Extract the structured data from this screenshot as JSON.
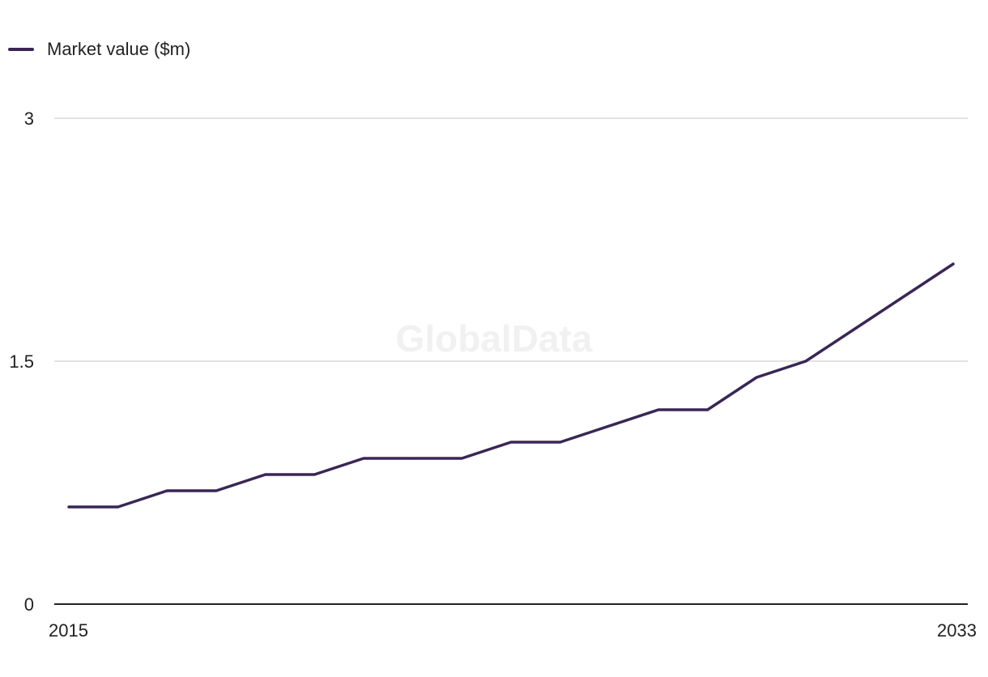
{
  "chart_data": {
    "type": "line",
    "x": [
      2015,
      2016,
      2017,
      2018,
      2019,
      2020,
      2021,
      2022,
      2023,
      2024,
      2025,
      2026,
      2027,
      2028,
      2029,
      2030,
      2031,
      2032,
      2033
    ],
    "series": [
      {
        "name": "Market value ($m)",
        "color": "#3a2656",
        "values": [
          0.6,
          0.6,
          0.7,
          0.7,
          0.8,
          0.8,
          0.9,
          0.9,
          0.9,
          1.0,
          1.0,
          1.1,
          1.2,
          1.2,
          1.4,
          1.5,
          1.7,
          1.9,
          2.1
        ]
      }
    ],
    "y_ticks": [
      "0",
      "1.5",
      "3"
    ],
    "x_tick_labels": [
      "2015",
      "2033"
    ],
    "ylim": [
      0,
      3
    ],
    "grid": true,
    "legend_position": "top-left",
    "watermark": "GlobalData",
    "colors": {
      "line": "#3a2656",
      "gridline": "#d9d9d9",
      "axis": "#222222",
      "text": "#222222",
      "watermark": "#f1f1f1"
    }
  }
}
